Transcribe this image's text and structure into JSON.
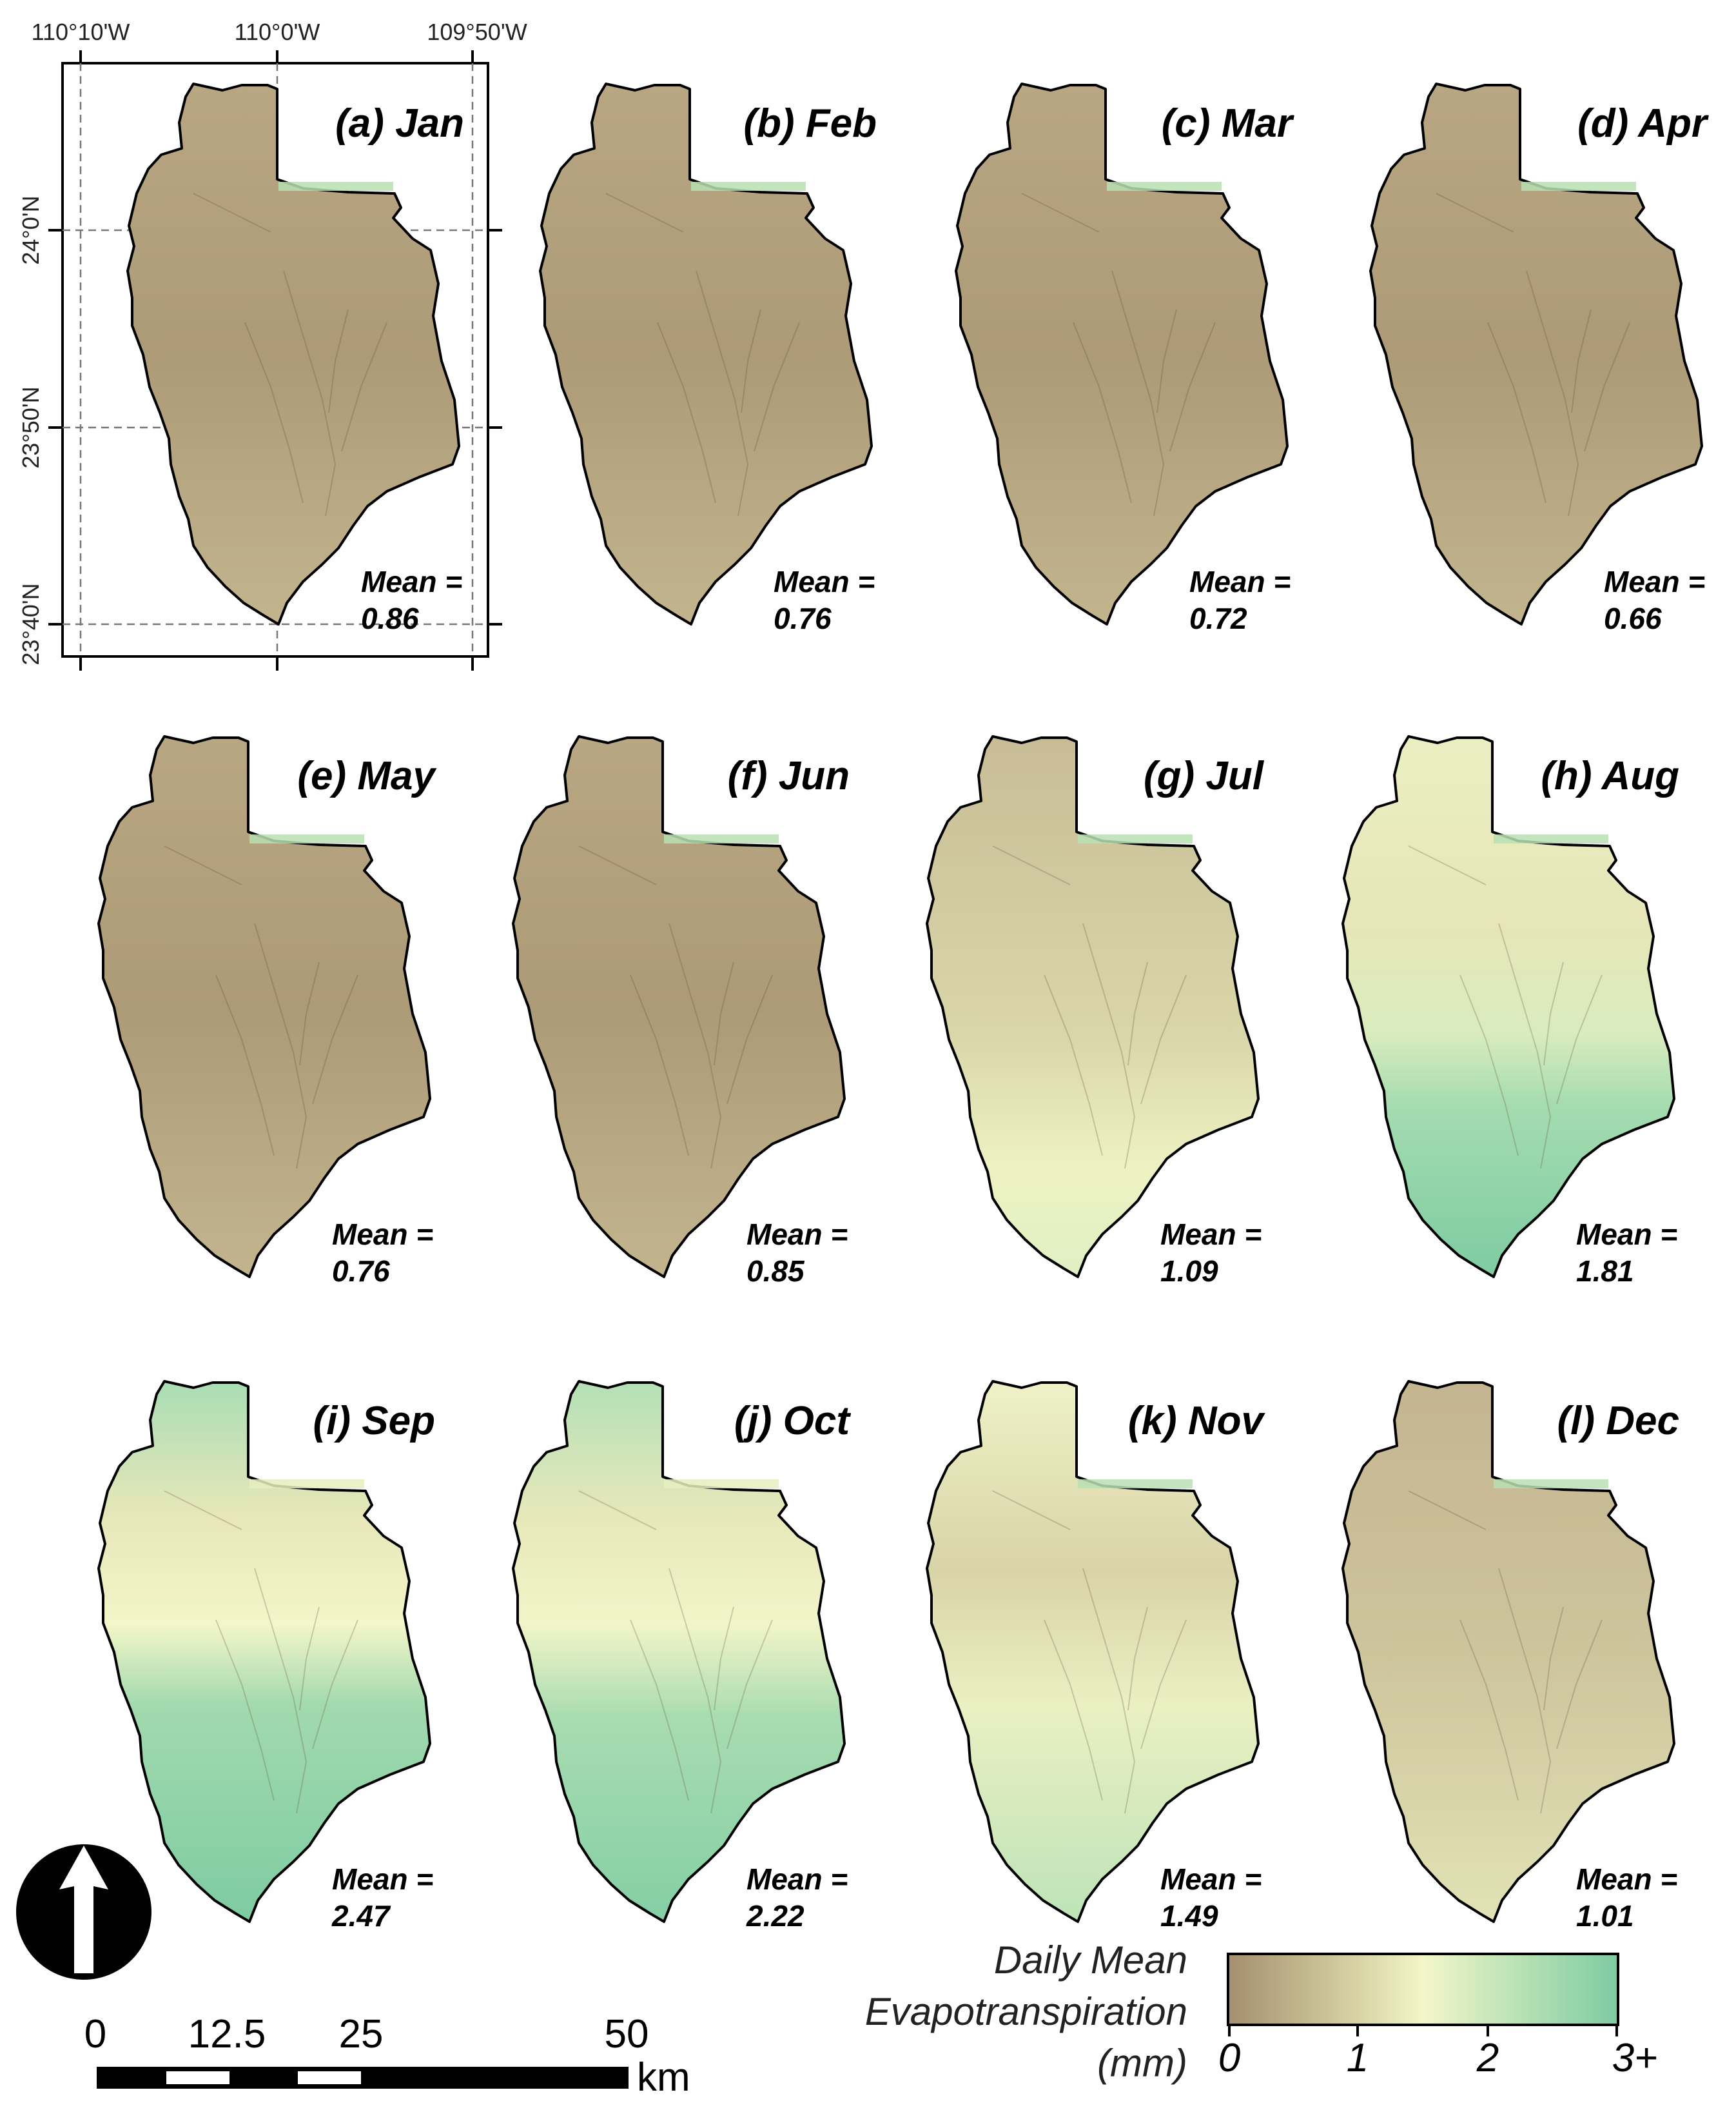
{
  "coordinates": {
    "longitudes": [
      "110°10'W",
      "110°0'W",
      "109°50'W"
    ],
    "latitudes": [
      "24°0'N",
      "23°50'N",
      "23°40'N"
    ]
  },
  "panels": [
    {
      "title": "(a) Jan",
      "mean_label": "Mean =",
      "mean": "0.86",
      "mean_value": 0.86,
      "wet_share": 0.0
    },
    {
      "title": "(b) Feb",
      "mean_label": "Mean =",
      "mean": "0.76",
      "mean_value": 0.76,
      "wet_share": 0.0
    },
    {
      "title": "(c) Mar",
      "mean_label": "Mean =",
      "mean": "0.72",
      "mean_value": 0.72,
      "wet_share": 0.0
    },
    {
      "title": "(d) Apr",
      "mean_label": "Mean =",
      "mean": "0.66",
      "mean_value": 0.66,
      "wet_share": 0.0
    },
    {
      "title": "(e) May",
      "mean_label": "Mean =",
      "mean": "0.76",
      "mean_value": 0.76,
      "wet_share": 0.0
    },
    {
      "title": "(f) Jun",
      "mean_label": "Mean =",
      "mean": "0.85",
      "mean_value": 0.85,
      "wet_share": 0.0
    },
    {
      "title": "(g) Jul",
      "mean_label": "Mean =",
      "mean": "1.09",
      "mean_value": 1.09,
      "wet_share": 0.1
    },
    {
      "title": "(h) Aug",
      "mean_label": "Mean =",
      "mean": "1.81",
      "mean_value": 1.81,
      "wet_share": 0.35
    },
    {
      "title": "(i) Sep",
      "mean_label": "Mean =",
      "mean": "2.47",
      "mean_value": 2.47,
      "wet_share": 0.55
    },
    {
      "title": "(j) Oct",
      "mean_label": "Mean =",
      "mean": "2.22",
      "mean_value": 2.22,
      "wet_share": 0.5
    },
    {
      "title": "(k) Nov",
      "mean_label": "Mean =",
      "mean": "1.49",
      "mean_value": 1.49,
      "wet_share": 0.15
    },
    {
      "title": "(l) Dec",
      "mean_label": "Mean =",
      "mean": "1.01",
      "mean_value": 1.01,
      "wet_share": 0.0
    }
  ],
  "scale_bar": {
    "labels": [
      "0",
      "12.5",
      "25",
      "50"
    ],
    "unit": "km"
  },
  "legend": {
    "title_lines": [
      "Daily Mean",
      "Evapotranspiration",
      "(mm)"
    ],
    "ticks": [
      "0",
      "1",
      "2",
      "3+"
    ]
  },
  "colors": {
    "low": "#a58f6e",
    "mid_low": "#d7d3a5",
    "mid": "#f3f6c9",
    "mid_high": "#c3e6b8",
    "high": "#7ecba2",
    "outline": "#000000"
  },
  "icons": [
    "north-arrow-icon"
  ]
}
